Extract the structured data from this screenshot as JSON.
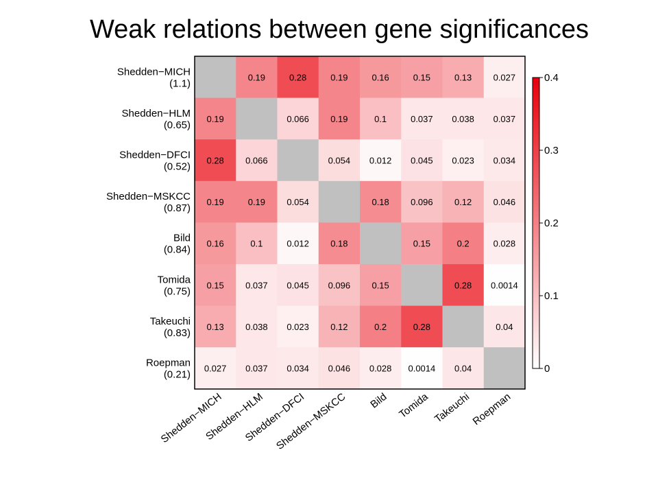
{
  "title": "Weak relations between gene significances",
  "chart_data": {
    "type": "heatmap",
    "rows": [
      {
        "name": "Shedden−MICH",
        "value": "(1.1)"
      },
      {
        "name": "Shedden−HLM",
        "value": "(0.65)"
      },
      {
        "name": "Shedden−DFCI",
        "value": "(0.52)"
      },
      {
        "name": "Shedden−MSKCC",
        "value": "(0.87)"
      },
      {
        "name": "Bild",
        "value": "(0.84)"
      },
      {
        "name": "Tomida",
        "value": "(0.75)"
      },
      {
        "name": "Takeuchi",
        "value": "(0.83)"
      },
      {
        "name": "Roepman",
        "value": "(0.21)"
      }
    ],
    "columns": [
      "Shedden−MICH",
      "Shedden−HLM",
      "Shedden−DFCI",
      "Shedden−MSKCC",
      "Bild",
      "Tomida",
      "Takeuchi",
      "Roepman"
    ],
    "matrix": [
      [
        null,
        0.19,
        0.28,
        0.19,
        0.16,
        0.15,
        0.13,
        0.027
      ],
      [
        0.19,
        null,
        0.066,
        0.19,
        0.1,
        0.037,
        0.038,
        0.037
      ],
      [
        0.28,
        0.066,
        null,
        0.054,
        0.012,
        0.045,
        0.023,
        0.034
      ],
      [
        0.19,
        0.19,
        0.054,
        null,
        0.18,
        0.096,
        0.12,
        0.046
      ],
      [
        0.16,
        0.1,
        0.012,
        0.18,
        null,
        0.15,
        0.2,
        0.028
      ],
      [
        0.15,
        0.037,
        0.045,
        0.096,
        0.15,
        null,
        0.28,
        0.0014
      ],
      [
        0.13,
        0.038,
        0.023,
        0.12,
        0.2,
        0.28,
        null,
        0.04
      ],
      [
        0.027,
        0.037,
        0.034,
        0.046,
        0.028,
        0.0014,
        0.04,
        null
      ]
    ],
    "colorbar": {
      "range": [
        0,
        0.4
      ],
      "ticks": [
        "0",
        "0.1",
        "0.2",
        "0.3",
        "0.4"
      ],
      "color_low": "#ffffff",
      "color_high": "#e8000b"
    },
    "diagonal_color": "#c0c0c0"
  }
}
